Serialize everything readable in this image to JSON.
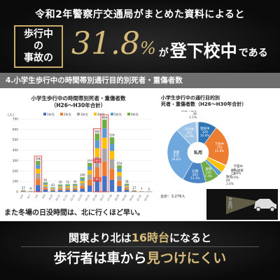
{
  "header": {
    "line1": "令和2年警察庁交通局がまとめた資料によると",
    "box_line1": "歩行中の",
    "box_line2": "事故の",
    "big_value": "31.8",
    "big_unit": "%",
    "ga": "が",
    "tokou": "登下校中",
    "dearu": "である"
  },
  "section_title": "4.小学生歩行中の時間帯別通行目的別死者・重傷者数",
  "chart_data": [
    {
      "type": "bar",
      "title": "小学生歩行中の時間帯別死者・重傷者数",
      "subtitle": "（H26～H30年合計）",
      "ylabel": "（人）",
      "ylim": [
        0,
        700
      ],
      "yticks": [
        0,
        100,
        200,
        300,
        400,
        500,
        600,
        700
      ],
      "legend": [
        "1年生",
        "2年生",
        "3年生",
        "4年生",
        "5年生",
        "6年生"
      ],
      "colors": [
        "#4472c4",
        "#ed7d31",
        "#a5a5a5",
        "#ffc000",
        "#5b9bd5",
        "#70ad47"
      ],
      "categories": [
        "0-6",
        "6-7",
        "7-8",
        "8-9",
        "9-10",
        "10-11",
        "11-12",
        "12-13",
        "13-14",
        "14-15",
        "15-16",
        "16-17",
        "17-18",
        "18-19",
        "19-20",
        "20-21",
        "21-22",
        "22-24"
      ],
      "totals": [
        17,
        9,
        296,
        91,
        43,
        70,
        72,
        75,
        140,
        277,
        560,
        694,
        524,
        254,
        78,
        17,
        7,
        5
      ],
      "highlight_labels": [
        "1年生",
        "2年生"
      ],
      "legend_placement": "top"
    },
    {
      "type": "pie",
      "title": "小学生歩行中の通行目的別",
      "title2": "死者・重傷者数",
      "subtitle": "（H26～H30年合計）",
      "slices": [
        {
          "label": "登校中",
          "value": 329,
          "pct": "10.0%",
          "color": "#2e75b6"
        },
        {
          "label": "下校中",
          "value": 714,
          "pct": "21.8%",
          "color": "#ed7d31"
        },
        {
          "label": "学業中",
          "value": 9,
          "pct": "0.3%",
          "color": "#a5a5a5"
        },
        {
          "label": "観光娯楽",
          "value": 127,
          "pct": "3.9%",
          "color": "#ffc000"
        },
        {
          "label": "散歩",
          "value": 84,
          "pct": "2.6%",
          "color": "#5b9bd5"
        },
        {
          "label": "買物",
          "value": 243,
          "pct": "7.4%",
          "color": "#70ad47"
        },
        {
          "label": "訪問",
          "value": 403,
          "pct": "12.3%",
          "color": "#4a86c5"
        },
        {
          "label": "遊戯",
          "value": 970,
          "pct": "29.6%",
          "color": "#6fa8dc"
        },
        {
          "label": "その他",
          "value": 361,
          "pct": "11.0%",
          "color": "#9dc3e6"
        },
        {
          "label": "調査不能等",
          "value": 36,
          "pct": "1.1%",
          "color": "#c9d7e6"
        }
      ],
      "group_label": "私用",
      "total_label": "合計：3,276人"
    }
  ],
  "note": "また冬場の日没時間は、北に行くほど早い。",
  "footer": {
    "line1_a": "関東より北は",
    "line1_b": "16時台",
    "line1_c": "になると",
    "line2_a": "歩行者は車から",
    "line2_b": "見つけにくい"
  }
}
